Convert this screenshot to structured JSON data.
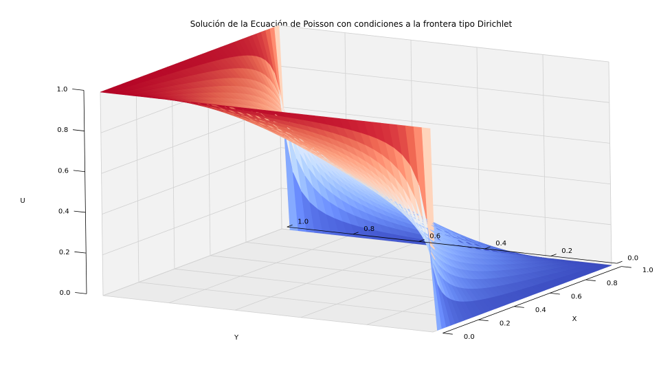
{
  "chart_data": {
    "type": "surface3d",
    "title": "Solución de la Ecuación de Poisson con condiciones a la frontera tipo Dirichlet",
    "xlabel": "X",
    "ylabel": "Y",
    "zlabel": "U",
    "xlim": [
      0,
      1
    ],
    "ylim": [
      0,
      1
    ],
    "zlim": [
      0,
      1
    ],
    "x_ticks": [
      "0.0",
      "0.2",
      "0.4",
      "0.6",
      "0.8",
      "1.0"
    ],
    "y_ticks": [
      "0.0",
      "0.2",
      "0.4",
      "0.6",
      "0.8",
      "1.0"
    ],
    "z_ticks": [
      "0.0",
      "0.2",
      "0.4",
      "0.6",
      "0.8",
      "1.0"
    ],
    "colormap": "coolwarm",
    "grid": true,
    "boundary_conditions": {
      "at_y_1": 1.0,
      "at_x_0": 1.0,
      "at_x_1": 0.0,
      "at_y_0": 0.0
    },
    "grid_resolution": 40
  }
}
